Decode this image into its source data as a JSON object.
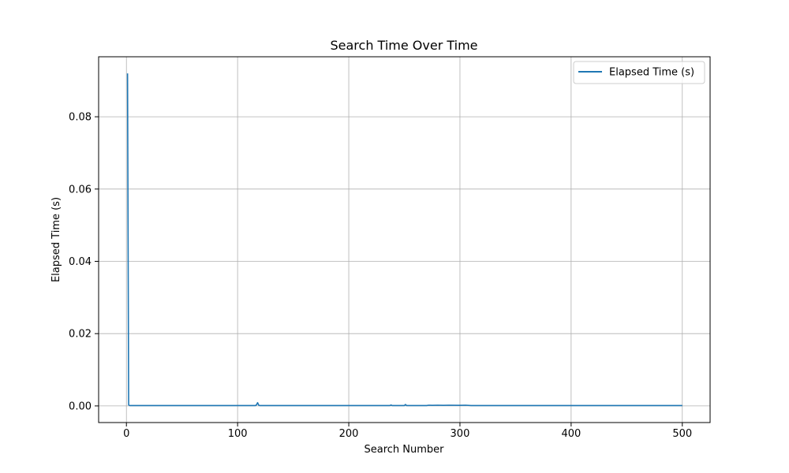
{
  "chart_data": {
    "type": "line",
    "title": "Search Time Over Time",
    "xlabel": "Search Number",
    "ylabel": "Elapsed Time (s)",
    "xlim": [
      -25,
      525
    ],
    "ylim": [
      -0.0046,
      0.0966
    ],
    "xticks": [
      0,
      100,
      200,
      300,
      400,
      500
    ],
    "xtick_labels": [
      "0",
      "100",
      "200",
      "300",
      "400",
      "500"
    ],
    "yticks": [
      0.0,
      0.02,
      0.04,
      0.06,
      0.08
    ],
    "ytick_labels": [
      "0.00",
      "0.02",
      "0.04",
      "0.06",
      "0.08"
    ],
    "grid": true,
    "legend_position": "top-right",
    "series": [
      {
        "name": "Elapsed Time (s)",
        "color": "#1f77b4",
        "x": [
          1,
          2,
          3,
          50,
          100,
          116,
          117,
          118,
          119,
          120,
          150,
          200,
          237,
          238,
          239,
          240,
          250,
          251,
          252,
          253,
          270,
          272,
          275,
          280,
          285,
          290,
          300,
          305,
          310,
          350,
          400,
          450,
          500
        ],
        "y": [
          0.092,
          0.0003,
          0.0001,
          0.0001,
          0.0001,
          0.0001,
          0.0003,
          0.0009,
          0.0002,
          0.0001,
          0.0001,
          0.0001,
          0.0001,
          0.00025,
          0.0001,
          0.0001,
          0.0001,
          0.0004,
          0.0001,
          0.0001,
          0.0001,
          0.0002,
          0.00015,
          0.0002,
          0.00015,
          0.0002,
          0.00015,
          0.0002,
          0.0001,
          0.0001,
          0.0001,
          0.0001,
          0.0001
        ]
      }
    ]
  }
}
